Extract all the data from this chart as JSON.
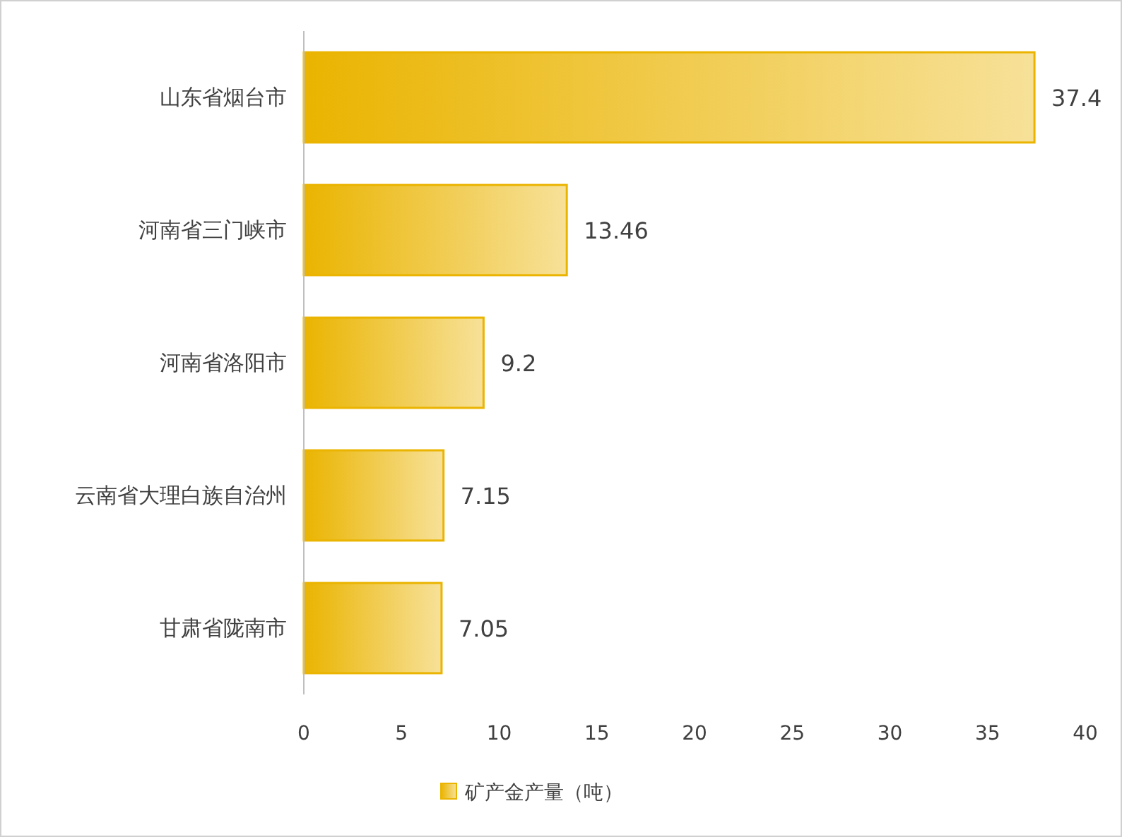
{
  "chart_data": {
    "type": "bar",
    "orientation": "horizontal",
    "categories": [
      "山东省烟台市",
      "河南省三门峡市",
      "河南省洛阳市",
      "云南省大理白族自治州",
      "甘肃省陇南市"
    ],
    "series": [
      {
        "name": "矿产金产量（吨）",
        "color": "#eab400",
        "values": [
          37.4,
          13.46,
          9.2,
          7.15,
          7.05
        ]
      }
    ],
    "xlim": [
      0,
      40
    ],
    "xticks": [
      0,
      5,
      10,
      15,
      20,
      25,
      30,
      35,
      40
    ],
    "data_labels": true,
    "legend": "bottom"
  }
}
